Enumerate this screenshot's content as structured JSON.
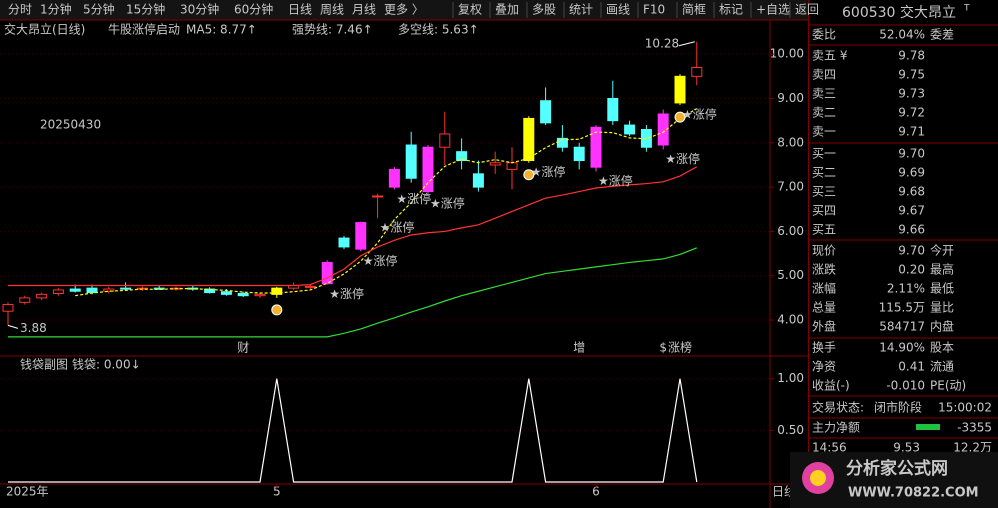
{
  "toolbar": {
    "periods": [
      "分时",
      "1分钟",
      "5分钟",
      "15分钟",
      "30分钟",
      "60分钟",
      "日线",
      "周线",
      "月线",
      "更多 〉"
    ],
    "active": 6,
    "tools": [
      "复权",
      "叠加",
      "多股",
      "统计",
      "画线",
      "F10",
      "简框",
      "标记",
      "+自选",
      "返回"
    ]
  },
  "header": {
    "stock": "交大昂立(日线)",
    "indicator": "牛股涨停启动",
    "lines": [
      {
        "text": "MA5: 8.77↑",
        "color": "#ffff00"
      },
      {
        "text": "强势线: 7.46↑",
        "color": "#ff3232"
      },
      {
        "text": "多空线: 5.63↑",
        "color": "#33dd33"
      }
    ]
  },
  "sub_header": {
    "indicator": "钱袋副图",
    "line": "钱袋: 0.00↓"
  },
  "chart_data": [
    {
      "type": "candlestick",
      "categories": [
        "2025年",
        null,
        null,
        null,
        null,
        null,
        null,
        null,
        null,
        null,
        null,
        null,
        null,
        null,
        null,
        null,
        "5",
        null,
        null,
        null,
        null,
        null,
        null,
        null,
        null,
        null,
        null,
        null,
        null,
        null,
        null,
        null,
        null,
        null,
        null,
        "6",
        null,
        null,
        null,
        null,
        null,
        null
      ],
      "open": [
        4.2,
        4.4,
        4.5,
        4.6,
        4.7,
        4.72,
        4.65,
        4.72,
        4.7,
        4.72,
        4.7,
        4.72,
        4.7,
        4.64,
        4.6,
        4.55,
        4.58,
        4.72,
        4.75,
        4.82,
        5.85,
        5.6,
        6.8,
        7.0,
        7.95,
        6.9,
        7.9,
        7.8,
        7.3,
        7.5,
        7.4,
        7.6,
        8.95,
        8.1,
        7.9,
        7.45,
        9.0,
        8.4,
        8.3,
        7.95,
        8.9,
        9.5
      ],
      "high": [
        4.4,
        4.55,
        4.62,
        4.72,
        4.8,
        4.8,
        4.75,
        4.85,
        4.76,
        4.78,
        4.76,
        4.78,
        4.74,
        4.7,
        4.64,
        4.62,
        4.75,
        4.85,
        4.8,
        5.35,
        5.9,
        6.22,
        6.85,
        7.45,
        8.25,
        7.95,
        8.7,
        8.1,
        7.6,
        7.8,
        7.9,
        8.6,
        9.25,
        8.4,
        8.0,
        8.4,
        9.4,
        8.5,
        8.4,
        8.75,
        9.55,
        10.28
      ],
      "low": [
        3.88,
        4.35,
        4.45,
        4.55,
        4.62,
        4.58,
        4.6,
        4.68,
        4.66,
        4.68,
        4.66,
        4.66,
        4.6,
        4.55,
        4.52,
        4.5,
        4.5,
        4.68,
        4.7,
        4.8,
        5.6,
        5.55,
        6.3,
        6.95,
        7.1,
        6.85,
        7.5,
        7.4,
        6.9,
        7.3,
        6.95,
        7.55,
        8.4,
        7.8,
        7.4,
        7.35,
        8.4,
        8.15,
        7.8,
        7.85,
        8.85,
        9.3
      ],
      "close": [
        4.35,
        4.5,
        4.58,
        4.68,
        4.65,
        4.62,
        4.7,
        4.7,
        4.72,
        4.7,
        4.72,
        4.7,
        4.62,
        4.58,
        4.55,
        4.58,
        4.72,
        4.78,
        4.76,
        5.3,
        5.65,
        6.2,
        6.78,
        7.4,
        7.2,
        7.9,
        8.2,
        7.6,
        7.0,
        7.55,
        7.55,
        8.55,
        8.45,
        7.9,
        7.6,
        8.35,
        8.5,
        8.2,
        7.9,
        8.65,
        9.5,
        9.7
      ],
      "styles": [
        "up",
        "up",
        "up",
        "up",
        "down",
        "down",
        "up",
        "down",
        "up",
        "down",
        "up",
        "down",
        "down",
        "down",
        "down",
        "up",
        "signal",
        "up",
        "up",
        "limit",
        "down",
        "limit",
        "up",
        "limit",
        "down",
        "limit",
        "up",
        "down",
        "down",
        "up",
        "up",
        "signal",
        "down",
        "down",
        "down",
        "limit",
        "down",
        "down",
        "down",
        "limit",
        "signal",
        "up"
      ],
      "style_colors": {
        "up": "#ff3232",
        "down": "#54ffff",
        "limit": "#ff32ff",
        "signal": "#ffff00"
      },
      "series": [
        {
          "name": "MA5",
          "color": "#ffff00",
          "dashed": true,
          "values": [
            null,
            null,
            null,
            null,
            4.55,
            4.61,
            4.65,
            4.67,
            4.7,
            4.69,
            4.71,
            4.71,
            4.69,
            4.67,
            4.63,
            4.61,
            4.61,
            4.64,
            4.68,
            4.83,
            5.04,
            5.33,
            5.74,
            6.27,
            6.65,
            7.1,
            7.47,
            7.63,
            7.55,
            7.62,
            7.55,
            7.65,
            7.89,
            8.07,
            8.08,
            8.24,
            8.23,
            8.11,
            8.09,
            8.24,
            8.55,
            8.77
          ]
        },
        {
          "name": "强势线",
          "color": "#ff3232",
          "dashed": false,
          "values": [
            4.78,
            4.78,
            4.78,
            4.78,
            4.78,
            4.78,
            4.78,
            4.78,
            4.78,
            4.78,
            4.78,
            4.78,
            4.78,
            4.78,
            4.78,
            4.78,
            4.78,
            4.78,
            4.8,
            4.95,
            5.15,
            5.45,
            5.65,
            5.8,
            5.92,
            5.97,
            6.0,
            6.08,
            6.15,
            6.3,
            6.45,
            6.6,
            6.75,
            6.82,
            6.9,
            6.98,
            7.02,
            7.05,
            7.08,
            7.12,
            7.25,
            7.46
          ]
        },
        {
          "name": "多空线",
          "color": "#33dd33",
          "dashed": false,
          "values": [
            3.62,
            3.62,
            3.62,
            3.62,
            3.62,
            3.62,
            3.62,
            3.62,
            3.62,
            3.62,
            3.62,
            3.62,
            3.62,
            3.62,
            3.62,
            3.62,
            3.62,
            3.62,
            3.62,
            3.62,
            3.7,
            3.8,
            3.93,
            4.05,
            4.18,
            4.3,
            4.43,
            4.55,
            4.65,
            4.75,
            4.85,
            4.95,
            5.05,
            5.1,
            5.15,
            5.2,
            5.25,
            5.3,
            5.34,
            5.38,
            5.48,
            5.63
          ]
        }
      ],
      "ylim": [
        3.55,
        10.32
      ],
      "yticks": [
        {
          "value": 4,
          "label": "4.00"
        },
        {
          "value": 5,
          "label": "5.00"
        },
        {
          "value": 6,
          "label": "6.00"
        },
        {
          "value": 7,
          "label": "7.00"
        },
        {
          "value": 8,
          "label": "8.00"
        },
        {
          "value": 9,
          "label": "9.00"
        },
        {
          "value": 10,
          "label": "10.00"
        }
      ],
      "grid": true,
      "date_note": "20250430",
      "max_label": "10.28",
      "min_label": "3.88",
      "signals": {
        "label": "★涨停",
        "indices": [
          19,
          21,
          22,
          23,
          25,
          31,
          35,
          39,
          40
        ]
      },
      "coins": [
        16,
        31,
        40
      ],
      "events": [
        {
          "text": "财",
          "index": 14,
          "color": "#54c8ff"
        },
        {
          "text": "增",
          "index": 34,
          "color": "#ff5050"
        },
        {
          "text": "$",
          "index": 39,
          "color": "#ff5050"
        },
        {
          "text": "涨榜",
          "index": 40,
          "color": "#ff5050"
        }
      ]
    },
    {
      "type": "line",
      "series": [
        {
          "name": "钱袋",
          "color": "#ffffff",
          "values": [
            0,
            0,
            0,
            0,
            0,
            0,
            0,
            0,
            0,
            0,
            0,
            0,
            0,
            0,
            0,
            0,
            1,
            0,
            0,
            0,
            0,
            0,
            0,
            0,
            0,
            0,
            0,
            0,
            0,
            0,
            0,
            1,
            0,
            0,
            0,
            0,
            0,
            0,
            0,
            0,
            1,
            0
          ]
        }
      ],
      "ylim": [
        0,
        1.22
      ],
      "yticks": [
        {
          "value": 0.5,
          "label": "0.50"
        },
        {
          "value": 1,
          "label": "1.00"
        }
      ],
      "grid": true
    }
  ],
  "period_tab": "日线",
  "quote": {
    "code": "600530",
    "name": "交大昂立",
    "badge": "T",
    "ratio_label": "委比",
    "ratio": "52.04%",
    "diff_label": "委差",
    "asks": [
      {
        "label": "卖五 ¥",
        "price": "9.78"
      },
      {
        "label": "卖四",
        "price": "9.75"
      },
      {
        "label": "卖三",
        "price": "9.73"
      },
      {
        "label": "卖二",
        "price": "9.72"
      },
      {
        "label": "卖一",
        "price": "9.71"
      }
    ],
    "bids": [
      {
        "label": "买一",
        "price": "9.70"
      },
      {
        "label": "买二",
        "price": "9.69"
      },
      {
        "label": "买三",
        "price": "9.68"
      },
      {
        "label": "买四",
        "price": "9.67"
      },
      {
        "label": "买五",
        "price": "9.66"
      }
    ],
    "stats": [
      {
        "label": "现价",
        "value": "9.70",
        "label2": "今开",
        "color": "#ff3232"
      },
      {
        "label": "涨跌",
        "value": "0.20",
        "label2": "最高",
        "color": "#ff3232"
      },
      {
        "label": "涨幅",
        "value": "2.11%",
        "label2": "最低",
        "color": "#ff3232"
      },
      {
        "label": "总量",
        "value": "115.5万",
        "label2": "量比",
        "color": "#ffff00"
      },
      {
        "label": "外盘",
        "value": "584717",
        "label2": "内盘",
        "color": "#ff3232"
      }
    ],
    "fin": [
      {
        "label": "换手",
        "value": "14.90%",
        "label2": "股本"
      },
      {
        "label": "净资",
        "value": "0.41",
        "label2": "流通"
      },
      {
        "label": "收益(-)",
        "value": "-0.010",
        "label2": "PE(动)"
      }
    ],
    "status_label": "交易状态:",
    "status": "闭市阶段",
    "time": "15:00:02",
    "flow_label": "主力净额",
    "flow": "-3355",
    "tick": {
      "time": "14:56",
      "price": "9.53",
      "volume": "12.2万"
    }
  },
  "watermark": {
    "title": "分析家公式网",
    "url": "WWW.70822.COM"
  }
}
